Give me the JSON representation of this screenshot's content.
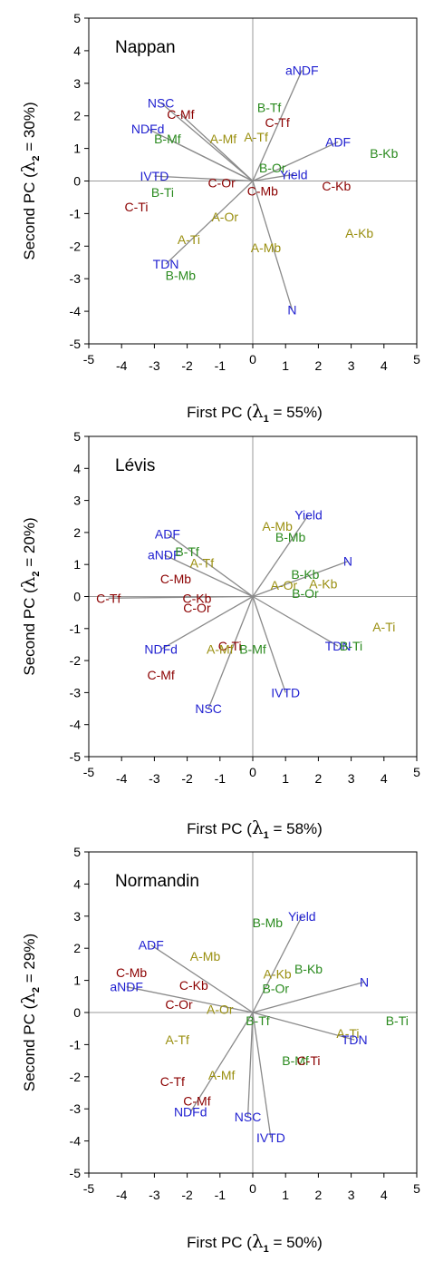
{
  "colors": {
    "blue": "#1f1fd0",
    "red": "#8b0000",
    "olive": "#9a8f10",
    "green": "#2a8a1e"
  },
  "chart_data": [
    {
      "type": "scatter",
      "title": "Nappan",
      "xlabel": "First PC (λ1 = 55%)",
      "ylabel": "Second PC (λ2 = 30%)",
      "xlim": [
        -5,
        5
      ],
      "ylim": [
        -5,
        5
      ],
      "xticks": [
        "-5",
        "-4",
        "-3",
        "-2",
        "-1",
        "0",
        "1",
        "2",
        "3",
        "4",
        "5"
      ],
      "yticks": [
        "-5",
        "-4",
        "-3",
        "-2",
        "-1",
        "0",
        "1",
        "2",
        "3",
        "4",
        "5"
      ],
      "points": [
        {
          "label": "aNDF",
          "color": "blue",
          "x": 1.5,
          "y": 3.4,
          "vector": true
        },
        {
          "label": "NSC",
          "color": "blue",
          "x": -2.8,
          "y": 2.4,
          "vector": true
        },
        {
          "label": "C-Mf",
          "color": "red",
          "x": -2.2,
          "y": 2.05,
          "vector": true
        },
        {
          "label": "NDFd",
          "color": "blue",
          "x": -3.2,
          "y": 1.6,
          "vector": true
        },
        {
          "label": "B-Mf",
          "color": "green",
          "x": -2.6,
          "y": 1.3,
          "vector": true
        },
        {
          "label": "A-Mf",
          "color": "olive",
          "x": -0.9,
          "y": 1.3,
          "vector": false
        },
        {
          "label": "A-Tf",
          "color": "olive",
          "x": 0.1,
          "y": 1.35,
          "vector": false
        },
        {
          "label": "B-Tf",
          "color": "green",
          "x": 0.5,
          "y": 2.25,
          "vector": false
        },
        {
          "label": "C-Tf",
          "color": "red",
          "x": 0.75,
          "y": 1.8,
          "vector": false
        },
        {
          "label": "ADF",
          "color": "blue",
          "x": 2.6,
          "y": 1.2,
          "vector": true
        },
        {
          "label": "B-Kb",
          "color": "green",
          "x": 4.0,
          "y": 0.85,
          "vector": false
        },
        {
          "label": "B-Or",
          "color": "green",
          "x": 0.6,
          "y": 0.4,
          "vector": false
        },
        {
          "label": "Yield",
          "color": "blue",
          "x": 1.25,
          "y": 0.2,
          "vector": true
        },
        {
          "label": "IVTD",
          "color": "blue",
          "x": -3.0,
          "y": 0.15,
          "vector": true
        },
        {
          "label": "C-Or",
          "color": "red",
          "x": -0.95,
          "y": -0.05,
          "vector": false
        },
        {
          "label": "C-Mb",
          "color": "red",
          "x": 0.3,
          "y": -0.3,
          "vector": false
        },
        {
          "label": "C-Kb",
          "color": "red",
          "x": 2.55,
          "y": -0.15,
          "vector": false
        },
        {
          "label": "B-Ti",
          "color": "green",
          "x": -2.75,
          "y": -0.35,
          "vector": false
        },
        {
          "label": "C-Ti",
          "color": "red",
          "x": -3.55,
          "y": -0.8,
          "vector": false
        },
        {
          "label": "A-Or",
          "color": "olive",
          "x": -0.85,
          "y": -1.1,
          "vector": false
        },
        {
          "label": "A-Kb",
          "color": "olive",
          "x": 3.25,
          "y": -1.6,
          "vector": false
        },
        {
          "label": "A-Ti",
          "color": "olive",
          "x": -1.95,
          "y": -1.8,
          "vector": false
        },
        {
          "label": "A-Mb",
          "color": "olive",
          "x": 0.4,
          "y": -2.05,
          "vector": false
        },
        {
          "label": "TDN",
          "color": "blue",
          "x": -2.65,
          "y": -2.55,
          "vector": true
        },
        {
          "label": "B-Mb",
          "color": "green",
          "x": -2.2,
          "y": -2.9,
          "vector": false
        },
        {
          "label": "N",
          "color": "blue",
          "x": 1.2,
          "y": -3.95,
          "vector": true
        }
      ]
    },
    {
      "type": "scatter",
      "title": "Lévis",
      "xlabel": "First PC (λ1 = 58%)",
      "ylabel": "Second PC (λ2 = 20%)",
      "xlim": [
        -5,
        5
      ],
      "ylim": [
        -5,
        5
      ],
      "xticks": [
        "-5",
        "-4",
        "-3",
        "-2",
        "-1",
        "0",
        "1",
        "2",
        "3",
        "4",
        "5"
      ],
      "yticks": [
        "-5",
        "-4",
        "-3",
        "-2",
        "-1",
        "0",
        "1",
        "2",
        "3",
        "4",
        "5"
      ],
      "points": [
        {
          "label": "Yield",
          "color": "blue",
          "x": 1.7,
          "y": 2.55,
          "vector": true
        },
        {
          "label": "A-Mb",
          "color": "olive",
          "x": 0.75,
          "y": 2.2,
          "vector": false
        },
        {
          "label": "B-Mb",
          "color": "green",
          "x": 1.15,
          "y": 1.85,
          "vector": false
        },
        {
          "label": "ADF",
          "color": "blue",
          "x": -2.6,
          "y": 1.95,
          "vector": true
        },
        {
          "label": "aNDF",
          "color": "blue",
          "x": -2.7,
          "y": 1.3,
          "vector": true
        },
        {
          "label": "B-Tf",
          "color": "green",
          "x": -2.0,
          "y": 1.4,
          "vector": false
        },
        {
          "label": "A-Tf",
          "color": "olive",
          "x": -1.55,
          "y": 1.05,
          "vector": false
        },
        {
          "label": "N",
          "color": "blue",
          "x": 2.9,
          "y": 1.1,
          "vector": true
        },
        {
          "label": "C-Mb",
          "color": "red",
          "x": -2.35,
          "y": 0.55,
          "vector": false
        },
        {
          "label": "B-Kb",
          "color": "green",
          "x": 1.6,
          "y": 0.7,
          "vector": false
        },
        {
          "label": "A-Kb",
          "color": "olive",
          "x": 2.15,
          "y": 0.4,
          "vector": false
        },
        {
          "label": "A-Or",
          "color": "olive",
          "x": 0.95,
          "y": 0.35,
          "vector": false
        },
        {
          "label": "B-Or",
          "color": "green",
          "x": 1.6,
          "y": 0.1,
          "vector": false
        },
        {
          "label": "C-Tf",
          "color": "red",
          "x": -4.4,
          "y": -0.05,
          "vector": true
        },
        {
          "label": "C-Kb",
          "color": "red",
          "x": -1.7,
          "y": -0.05,
          "vector": false
        },
        {
          "label": "C-Or",
          "color": "red",
          "x": -1.7,
          "y": -0.35,
          "vector": false
        },
        {
          "label": "A-Ti",
          "color": "olive",
          "x": 4.0,
          "y": -0.95,
          "vector": false
        },
        {
          "label": "TDN",
          "color": "blue",
          "x": 2.6,
          "y": -1.55,
          "vector": true
        },
        {
          "label": "B-Ti",
          "color": "green",
          "x": 3.0,
          "y": -1.55,
          "vector": false
        },
        {
          "label": "C-Ti",
          "color": "red",
          "x": -0.7,
          "y": -1.55,
          "vector": false
        },
        {
          "label": "A-Mf",
          "color": "olive",
          "x": -1.0,
          "y": -1.65,
          "vector": false
        },
        {
          "label": "B-Mf",
          "color": "green",
          "x": 0.0,
          "y": -1.65,
          "vector": false
        },
        {
          "label": "NDFd",
          "color": "blue",
          "x": -2.8,
          "y": -1.65,
          "vector": true
        },
        {
          "label": "C-Mf",
          "color": "red",
          "x": -2.8,
          "y": -2.45,
          "vector": false
        },
        {
          "label": "IVTD",
          "color": "blue",
          "x": 1.0,
          "y": -3.0,
          "vector": true
        },
        {
          "label": "NSC",
          "color": "blue",
          "x": -1.35,
          "y": -3.5,
          "vector": true
        }
      ]
    },
    {
      "type": "scatter",
      "title": "Normandin",
      "xlabel": "First PC (λ1 = 50%)",
      "ylabel": "Second PC (λ2 = 29%)",
      "xlim": [
        -5,
        5
      ],
      "ylim": [
        -5,
        5
      ],
      "xticks": [
        "-5",
        "-4",
        "-3",
        "-2",
        "-1",
        "0",
        "1",
        "2",
        "3",
        "4",
        "5"
      ],
      "yticks": [
        "-5",
        "-4",
        "-3",
        "-2",
        "-1",
        "0",
        "1",
        "2",
        "3",
        "4",
        "5"
      ],
      "points": [
        {
          "label": "Yield",
          "color": "blue",
          "x": 1.5,
          "y": 3.0,
          "vector": true
        },
        {
          "label": "B-Mb",
          "color": "green",
          "x": 0.45,
          "y": 2.8,
          "vector": false
        },
        {
          "label": "ADF",
          "color": "blue",
          "x": -3.1,
          "y": 2.1,
          "vector": true
        },
        {
          "label": "A-Mb",
          "color": "olive",
          "x": -1.45,
          "y": 1.75,
          "vector": false
        },
        {
          "label": "A-Kb",
          "color": "olive",
          "x": 0.75,
          "y": 1.2,
          "vector": false
        },
        {
          "label": "B-Kb",
          "color": "green",
          "x": 1.7,
          "y": 1.35,
          "vector": false
        },
        {
          "label": "N",
          "color": "blue",
          "x": 3.4,
          "y": 0.95,
          "vector": true
        },
        {
          "label": "C-Mb",
          "color": "red",
          "x": -3.7,
          "y": 1.25,
          "vector": false
        },
        {
          "label": "B-Or",
          "color": "green",
          "x": 0.7,
          "y": 0.75,
          "vector": false
        },
        {
          "label": "C-Kb",
          "color": "red",
          "x": -1.8,
          "y": 0.85,
          "vector": false
        },
        {
          "label": "aNDF",
          "color": "blue",
          "x": -3.85,
          "y": 0.8,
          "vector": true
        },
        {
          "label": "C-Or",
          "color": "red",
          "x": -2.25,
          "y": 0.25,
          "vector": false
        },
        {
          "label": "A-Or",
          "color": "olive",
          "x": -1.0,
          "y": 0.1,
          "vector": false
        },
        {
          "label": "B-Tf",
          "color": "green",
          "x": 0.15,
          "y": -0.25,
          "vector": false
        },
        {
          "label": "B-Ti",
          "color": "green",
          "x": 4.4,
          "y": -0.25,
          "vector": false
        },
        {
          "label": "A-Ti",
          "color": "olive",
          "x": 2.9,
          "y": -0.65,
          "vector": false
        },
        {
          "label": "TDN",
          "color": "blue",
          "x": 3.1,
          "y": -0.85,
          "vector": true
        },
        {
          "label": "A-Tf",
          "color": "olive",
          "x": -2.3,
          "y": -0.85,
          "vector": false
        },
        {
          "label": "B-Mf",
          "color": "green",
          "x": 1.3,
          "y": -1.5,
          "vector": false
        },
        {
          "label": "C-Ti",
          "color": "red",
          "x": 1.7,
          "y": -1.5,
          "vector": false
        },
        {
          "label": "A-Mf",
          "color": "olive",
          "x": -0.95,
          "y": -1.95,
          "vector": false
        },
        {
          "label": "C-Tf",
          "color": "red",
          "x": -2.45,
          "y": -2.15,
          "vector": false
        },
        {
          "label": "C-Mf",
          "color": "red",
          "x": -1.7,
          "y": -2.75,
          "vector": false
        },
        {
          "label": "NDFd",
          "color": "blue",
          "x": -1.9,
          "y": -3.1,
          "vector": true
        },
        {
          "label": "NSC",
          "color": "blue",
          "x": -0.15,
          "y": -3.25,
          "vector": true
        },
        {
          "label": "IVTD",
          "color": "blue",
          "x": 0.55,
          "y": -3.9,
          "vector": true
        }
      ]
    }
  ]
}
